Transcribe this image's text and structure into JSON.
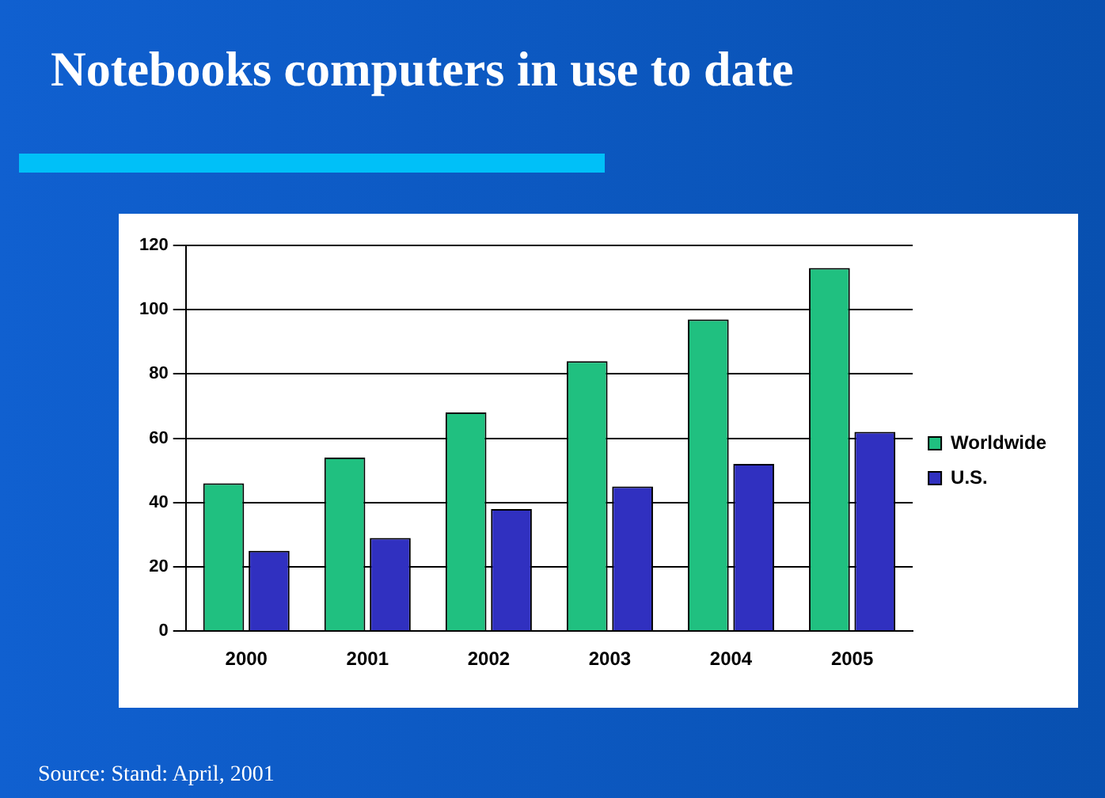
{
  "chart_data": {
    "type": "bar",
    "title": "Notebooks computers in use to date",
    "categories": [
      "2000",
      "2001",
      "2002",
      "2003",
      "2004",
      "2005"
    ],
    "series": [
      {
        "name": "Worldwide",
        "color": "#20c080",
        "values": [
          46,
          54,
          68,
          84,
          97,
          113
        ]
      },
      {
        "name": "U.S.",
        "color": "#3030c0",
        "values": [
          25,
          29,
          38,
          45,
          52,
          62
        ]
      }
    ],
    "ylim": [
      0,
      120
    ],
    "yticks": [
      0,
      20,
      40,
      60,
      80,
      100,
      120
    ],
    "grid": "y",
    "legend": "right",
    "annotations": [
      "Source: Stand: April, 2001"
    ]
  }
}
